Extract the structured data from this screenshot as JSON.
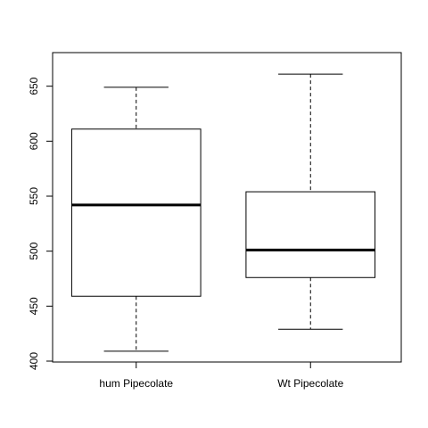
{
  "chart_data": {
    "type": "boxplot",
    "title": "",
    "xlabel": "",
    "ylabel": "",
    "categories": [
      "hum Pipecolate",
      "Wt Pipecolate"
    ],
    "boxes": [
      {
        "category": "hum Pipecolate",
        "min": 409,
        "q1": 459,
        "median": 542,
        "q3": 611,
        "max": 649
      },
      {
        "category": "Wt Pipecolate",
        "min": 429,
        "q1": 476,
        "median": 501,
        "q3": 554,
        "max": 661
      }
    ],
    "y_ticks": [
      400,
      450,
      500,
      550,
      600,
      650
    ],
    "ylim": [
      400,
      670
    ],
    "grid": false,
    "colors": {
      "box_stroke": "#000000",
      "box_fill": "#ffffff",
      "median": "#000000"
    }
  }
}
